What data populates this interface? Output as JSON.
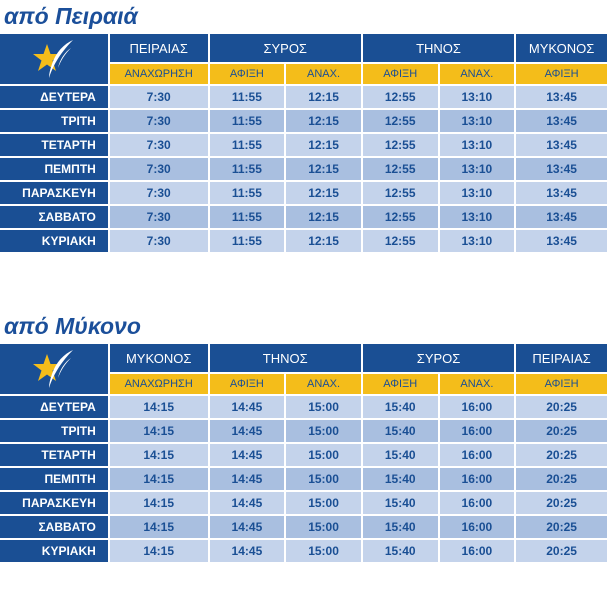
{
  "sections": [
    {
      "title": "από Πειραιά",
      "ports": [
        "ΠΕΙΡΑΙΑΣ",
        "ΣΥΡΟΣ",
        "ΤΗΝΟΣ",
        "ΜΥΚΟΝΟΣ"
      ],
      "subheaders": [
        "ΑΝΑΧΩΡΗΣΗ",
        "ΑΦΙΞΗ",
        "ΑΝΑΧ.",
        "ΑΦΙΞΗ",
        "ΑΝΑΧ.",
        "ΑΦΙΞΗ"
      ],
      "rows": [
        {
          "day": "ΔΕΥΤΕΡΑ",
          "times": [
            "7:30",
            "11:55",
            "12:15",
            "12:55",
            "13:10",
            "13:45"
          ]
        },
        {
          "day": "ΤΡΙΤΗ",
          "times": [
            "7:30",
            "11:55",
            "12:15",
            "12:55",
            "13:10",
            "13:45"
          ]
        },
        {
          "day": "ΤΕΤΑΡΤΗ",
          "times": [
            "7:30",
            "11:55",
            "12:15",
            "12:55",
            "13:10",
            "13:45"
          ]
        },
        {
          "day": "ΠΕΜΠΤΗ",
          "times": [
            "7:30",
            "11:55",
            "12:15",
            "12:55",
            "13:10",
            "13:45"
          ]
        },
        {
          "day": "ΠΑΡΑΣΚΕΥΗ",
          "times": [
            "7:30",
            "11:55",
            "12:15",
            "12:55",
            "13:10",
            "13:45"
          ]
        },
        {
          "day": "ΣΑΒΒΑΤΟ",
          "times": [
            "7:30",
            "11:55",
            "12:15",
            "12:55",
            "13:10",
            "13:45"
          ]
        },
        {
          "day": "ΚΥΡΙΑΚΗ",
          "times": [
            "7:30",
            "11:55",
            "12:15",
            "12:55",
            "13:10",
            "13:45"
          ]
        }
      ]
    },
    {
      "title": "από Μύκονο",
      "ports": [
        "ΜΥΚΟΝΟΣ",
        "ΤΗΝΟΣ",
        "ΣΥΡΟΣ",
        "ΠΕΙΡΑΙΑΣ"
      ],
      "subheaders": [
        "ΑΝΑΧΩΡΗΣΗ",
        "ΑΦΙΞΗ",
        "ΑΝΑΧ.",
        "ΑΦΙΞΗ",
        "ΑΝΑΧ.",
        "ΑΦΙΞΗ"
      ],
      "rows": [
        {
          "day": "ΔΕΥΤΕΡΑ",
          "times": [
            "14:15",
            "14:45",
            "15:00",
            "15:40",
            "16:00",
            "20:25"
          ]
        },
        {
          "day": "ΤΡΙΤΗ",
          "times": [
            "14:15",
            "14:45",
            "15:00",
            "15:40",
            "16:00",
            "20:25"
          ]
        },
        {
          "day": "ΤΕΤΑΡΤΗ",
          "times": [
            "14:15",
            "14:45",
            "15:00",
            "15:40",
            "16:00",
            "20:25"
          ]
        },
        {
          "day": "ΠΕΜΠΤΗ",
          "times": [
            "14:15",
            "14:45",
            "15:00",
            "15:40",
            "16:00",
            "20:25"
          ]
        },
        {
          "day": "ΠΑΡΑΣΚΕΥΗ",
          "times": [
            "14:15",
            "14:45",
            "15:00",
            "15:40",
            "16:00",
            "20:25"
          ]
        },
        {
          "day": "ΣΑΒΒΑΤΟ",
          "times": [
            "14:15",
            "14:45",
            "15:00",
            "15:40",
            "16:00",
            "20:25"
          ]
        },
        {
          "day": "ΚΥΡΙΑΚΗ",
          "times": [
            "14:15",
            "14:45",
            "15:00",
            "15:40",
            "16:00",
            "20:25"
          ]
        }
      ]
    }
  ],
  "logo": {
    "icon": "star-swoosh-logo-icon",
    "star_color": "#f4bd1a",
    "swoosh_color": "#ffffff"
  },
  "colors": {
    "header_blue": "#1a4f94",
    "subheader_yellow": "#f4bd1a",
    "row_light": "#c4d3eb",
    "row_dark": "#a9bfe0",
    "title_blue": "#1b4f9a"
  }
}
